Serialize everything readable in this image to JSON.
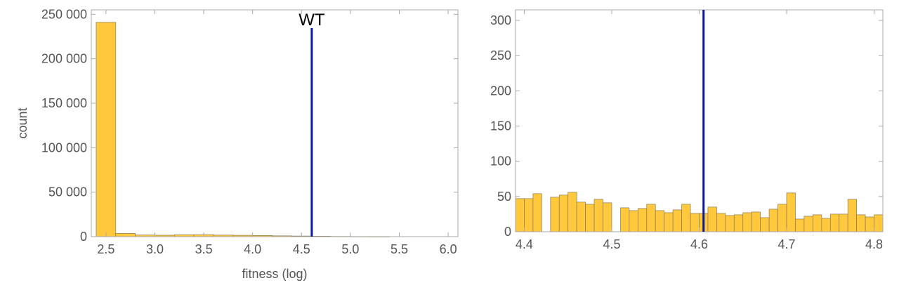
{
  "colors": {
    "bar_fill": "#FFC83D",
    "bar_stroke": "#8a7a55",
    "marker_line": "#0A1A9A",
    "axis": "#a9a9a9",
    "tick_text": "#555555"
  },
  "chart_data": [
    {
      "type": "bar",
      "xlabel": "fitness (log)",
      "ylabel": "count",
      "xlim": [
        2.35,
        6.1
      ],
      "ylim": [
        0,
        255000
      ],
      "x_ticks": [
        "2.5",
        "3.0",
        "3.5",
        "4.0",
        "4.5",
        "5.0",
        "5.5",
        "6.0"
      ],
      "y_ticks": [
        "0",
        "50 000",
        "100 000",
        "150 000",
        "200 000",
        "250 000"
      ],
      "bin_width": 0.2,
      "bins": [
        {
          "x0": 2.4,
          "value": 241000
        },
        {
          "x0": 2.6,
          "value": 3600
        },
        {
          "x0": 2.8,
          "value": 1800
        },
        {
          "x0": 3.0,
          "value": 1600
        },
        {
          "x0": 3.2,
          "value": 2100
        },
        {
          "x0": 3.4,
          "value": 2200
        },
        {
          "x0": 3.6,
          "value": 1700
        },
        {
          "x0": 3.8,
          "value": 1500
        },
        {
          "x0": 4.0,
          "value": 1300
        },
        {
          "x0": 4.2,
          "value": 900
        },
        {
          "x0": 4.4,
          "value": 700
        },
        {
          "x0": 4.6,
          "value": 500
        },
        {
          "x0": 4.8,
          "value": 250
        },
        {
          "x0": 5.0,
          "value": 80
        },
        {
          "x0": 5.2,
          "value": 30
        }
      ],
      "marker": {
        "label": "WT",
        "x": 4.605
      }
    },
    {
      "type": "bar",
      "xlabel": "",
      "ylabel": "",
      "xlim": [
        4.39,
        4.81
      ],
      "ylim": [
        0,
        315
      ],
      "x_ticks": [
        "4.4",
        "4.5",
        "4.6",
        "4.7",
        "4.8"
      ],
      "y_ticks": [
        "0",
        "50",
        "100",
        "150",
        "200",
        "250",
        "300"
      ],
      "bin_width": 0.01,
      "bins": [
        {
          "x0": 4.39,
          "value": 47
        },
        {
          "x0": 4.4,
          "value": 47
        },
        {
          "x0": 4.41,
          "value": 54
        },
        {
          "x0": 4.43,
          "value": 49
        },
        {
          "x0": 4.44,
          "value": 52
        },
        {
          "x0": 4.45,
          "value": 56
        },
        {
          "x0": 4.46,
          "value": 42
        },
        {
          "x0": 4.47,
          "value": 39
        },
        {
          "x0": 4.48,
          "value": 46
        },
        {
          "x0": 4.49,
          "value": 41
        },
        {
          "x0": 4.51,
          "value": 34
        },
        {
          "x0": 4.52,
          "value": 30
        },
        {
          "x0": 4.53,
          "value": 33
        },
        {
          "x0": 4.54,
          "value": 39
        },
        {
          "x0": 4.55,
          "value": 30
        },
        {
          "x0": 4.56,
          "value": 27
        },
        {
          "x0": 4.57,
          "value": 31
        },
        {
          "x0": 4.58,
          "value": 39
        },
        {
          "x0": 4.59,
          "value": 26
        },
        {
          "x0": 4.6,
          "value": 26
        },
        {
          "x0": 4.61,
          "value": 35
        },
        {
          "x0": 4.62,
          "value": 26
        },
        {
          "x0": 4.63,
          "value": 23
        },
        {
          "x0": 4.64,
          "value": 24
        },
        {
          "x0": 4.65,
          "value": 27
        },
        {
          "x0": 4.66,
          "value": 28
        },
        {
          "x0": 4.67,
          "value": 20
        },
        {
          "x0": 4.68,
          "value": 32
        },
        {
          "x0": 4.69,
          "value": 39
        },
        {
          "x0": 4.7,
          "value": 55
        },
        {
          "x0": 4.71,
          "value": 18
        },
        {
          "x0": 4.72,
          "value": 22
        },
        {
          "x0": 4.73,
          "value": 24
        },
        {
          "x0": 4.74,
          "value": 19
        },
        {
          "x0": 4.75,
          "value": 25
        },
        {
          "x0": 4.76,
          "value": 25
        },
        {
          "x0": 4.77,
          "value": 46
        },
        {
          "x0": 4.78,
          "value": 24
        },
        {
          "x0": 4.79,
          "value": 21
        },
        {
          "x0": 4.8,
          "value": 24
        }
      ],
      "marker": {
        "label": "",
        "x": 4.605
      }
    }
  ]
}
